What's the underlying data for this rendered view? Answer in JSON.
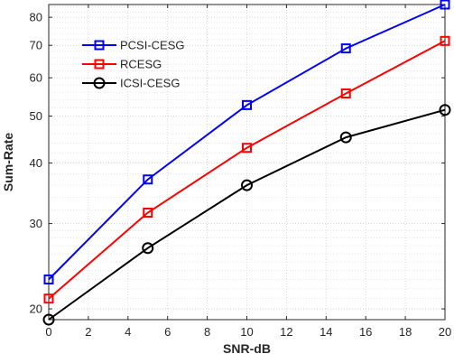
{
  "chart_data": {
    "type": "line",
    "title": "",
    "xlabel": "SNR-dB",
    "ylabel": "Sum-Rate",
    "x_scale": "linear",
    "y_scale": "log",
    "xlim": [
      0,
      20
    ],
    "ylim": [
      19,
      85
    ],
    "x_ticks": [
      0,
      2,
      4,
      6,
      8,
      10,
      12,
      14,
      16,
      18,
      20
    ],
    "y_ticks": [
      20,
      30,
      40,
      50,
      60,
      70,
      80
    ],
    "grid": true,
    "legend_position": "top-left",
    "x": [
      0,
      5,
      10,
      15,
      20
    ],
    "series": [
      {
        "name": "PCSI-CESG",
        "color": "#0000ff",
        "marker": "square",
        "values": [
          23.0,
          37.0,
          52.7,
          69.0,
          85.0
        ]
      },
      {
        "name": "RCESG",
        "color": "#ff0000",
        "marker": "square",
        "values": [
          21.0,
          31.6,
          43.0,
          55.7,
          71.5
        ]
      },
      {
        "name": "ICSI-CESG",
        "color": "#000000",
        "marker": "circle",
        "values": [
          19.0,
          26.7,
          36.0,
          45.2,
          51.5
        ]
      }
    ]
  }
}
